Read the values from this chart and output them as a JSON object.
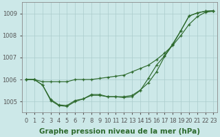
{
  "xlabel_label": "Graphe pression niveau de la mer (hPa)",
  "bg_color": "#cce8e8",
  "grid_color": "#aacccc",
  "line_color": "#2d6a2d",
  "marker_color": "#2d6a2d",
  "ylabel_ticks": [
    1005,
    1006,
    1007,
    1008,
    1009
  ],
  "xlabel_ticks": [
    0,
    1,
    2,
    3,
    4,
    5,
    6,
    7,
    8,
    9,
    10,
    11,
    12,
    13,
    14,
    15,
    16,
    17,
    18,
    19,
    20,
    21,
    22,
    23
  ],
  "ylim": [
    1004.5,
    1009.5
  ],
  "xlim": [
    -0.5,
    23.5
  ],
  "series": [
    [
      1006.0,
      1006.0,
      1005.9,
      1005.9,
      1005.9,
      1005.9,
      1006.0,
      1006.0,
      1006.0,
      1006.05,
      1006.1,
      1006.15,
      1006.2,
      1006.35,
      1006.5,
      1006.65,
      1006.9,
      1007.2,
      1007.55,
      1008.0,
      1008.5,
      1008.85,
      1009.05,
      1009.1
    ],
    [
      1006.0,
      1006.0,
      1005.75,
      1005.1,
      1004.85,
      1004.82,
      1005.05,
      1005.12,
      1005.32,
      1005.32,
      1005.22,
      1005.22,
      1005.22,
      1005.28,
      1005.52,
      1005.85,
      1006.35,
      1007.05,
      1007.58,
      1008.22,
      1008.88,
      1009.02,
      1009.1,
      1009.12
    ],
    [
      1006.0,
      1006.0,
      1005.75,
      1005.05,
      1004.82,
      1004.78,
      1005.0,
      1005.12,
      1005.28,
      1005.28,
      1005.22,
      1005.22,
      1005.18,
      1005.22,
      1005.5,
      1006.05,
      1006.65,
      1007.08,
      1007.62,
      1008.22,
      1008.88,
      1009.02,
      1009.1,
      1009.12
    ]
  ],
  "label_fontsize": 7.5,
  "tick_fontsize": 6.0,
  "linewidth": 0.85,
  "markersize": 3.2,
  "markeredgewidth": 0.9
}
